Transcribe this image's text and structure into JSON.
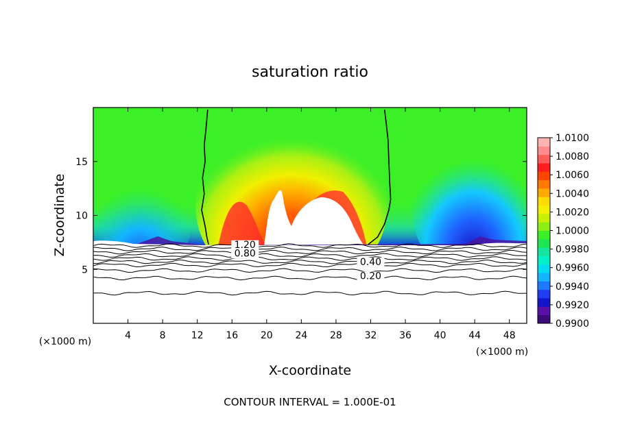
{
  "chart_data": {
    "type": "heatmap",
    "title": "saturation ratio",
    "xlabel": "X-coordinate",
    "ylabel": "Z-coordinate",
    "x_unit": "(×1000 m)",
    "y_unit": "(×1000 m)",
    "xlim": [
      0,
      50
    ],
    "ylim": [
      0,
      20
    ],
    "x_ticks": [
      4,
      8,
      12,
      16,
      20,
      24,
      28,
      32,
      36,
      40,
      44,
      48
    ],
    "y_ticks": [
      5,
      10,
      15
    ],
    "colorbar": {
      "min": 0.99,
      "max": 1.01,
      "labels": [
        "1.0100",
        "1.0080",
        "1.0060",
        "1.0040",
        "1.0020",
        "1.0000",
        "0.9980",
        "0.9960",
        "0.9940",
        "0.9920",
        "0.9900"
      ],
      "colors": [
        "#3c0a7a",
        "#5a0fa8",
        "#1414c8",
        "#1e3cf0",
        "#1e78ff",
        "#14b4ff",
        "#00dcf0",
        "#00f0c8",
        "#14e6a0",
        "#1ee650",
        "#3cf028",
        "#8cf014",
        "#c8f000",
        "#f0f000",
        "#ffdc00",
        "#ffaa00",
        "#ff7800",
        "#ff4600",
        "#ff1e1e",
        "#ff5a5a",
        "#ff8c8c",
        "#ffb4b4"
      ]
    },
    "footer": "CONTOUR INTERVAL = 1.000E-01",
    "contour_labels": [
      {
        "text": "1.20",
        "x": 17.5,
        "z": 7.0
      },
      {
        "text": "0.80",
        "x": 17.5,
        "z": 6.2
      },
      {
        "text": "0.40",
        "x": 32.0,
        "z": 5.4
      },
      {
        "text": "0.20",
        "x": 32.0,
        "z": 4.1
      }
    ],
    "contour_levels_z": [
      7.2,
      6.9,
      6.6,
      6.3,
      6.0,
      5.7,
      5.4,
      4.9,
      4.2,
      2.8
    ],
    "unity_contours": [
      {
        "x": [
          13.2,
          13.0,
          12.8,
          12.9,
          12.6,
          12.8,
          12.5,
          12.9,
          13.1,
          13.3
        ],
        "z": [
          19.8,
          18,
          16.5,
          15,
          13.5,
          12,
          10.5,
          9,
          8,
          7.3
        ]
      },
      {
        "x": [
          33.6,
          33.8,
          34.0,
          34.1,
          34.2,
          34.3,
          34.1,
          33.6,
          32.8,
          31.7
        ],
        "z": [
          19.8,
          18.5,
          17,
          15,
          13,
          11.5,
          10.5,
          9.2,
          8,
          7.3
        ]
      }
    ],
    "notes": "2-D field of saturation ratio over x (0-50 km) and z (0-20 km); supersaturated plume (up to ~1.008) between x~14-32 km, subsaturated (~0.992) near x~44 km and x~8 km"
  }
}
